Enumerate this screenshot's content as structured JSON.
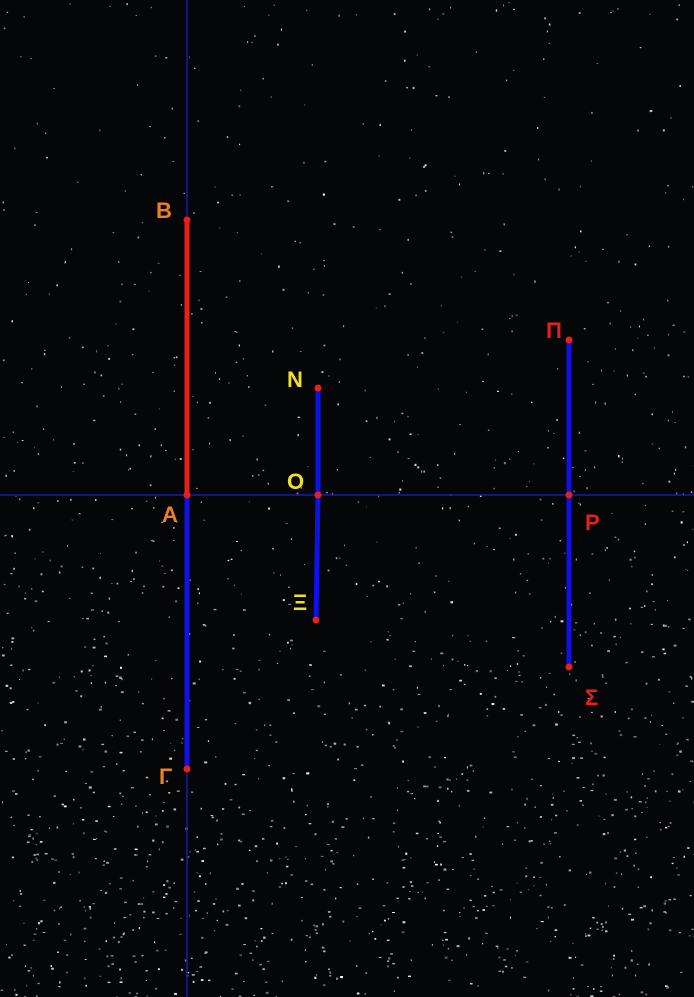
{
  "colors": {
    "background": "#050608",
    "speckle": "#ffffff",
    "axis": "#1a1aa8",
    "segment_red": "#e8201a",
    "segment_blue": "#1010e8",
    "point": "#e8201a",
    "label_orange": "#f08020",
    "label_yellow": "#f0e020",
    "label_red": "#e8201a"
  },
  "points": {
    "B": {
      "label": "Β"
    },
    "A": {
      "label": "Α"
    },
    "G": {
      "label": "Γ"
    },
    "N": {
      "label": "Ν"
    },
    "O": {
      "label": "Ο"
    },
    "X": {
      "label": "Ξ"
    },
    "P": {
      "label": "Π"
    },
    "R": {
      "label": "Ρ"
    },
    "S": {
      "label": "Σ"
    }
  }
}
